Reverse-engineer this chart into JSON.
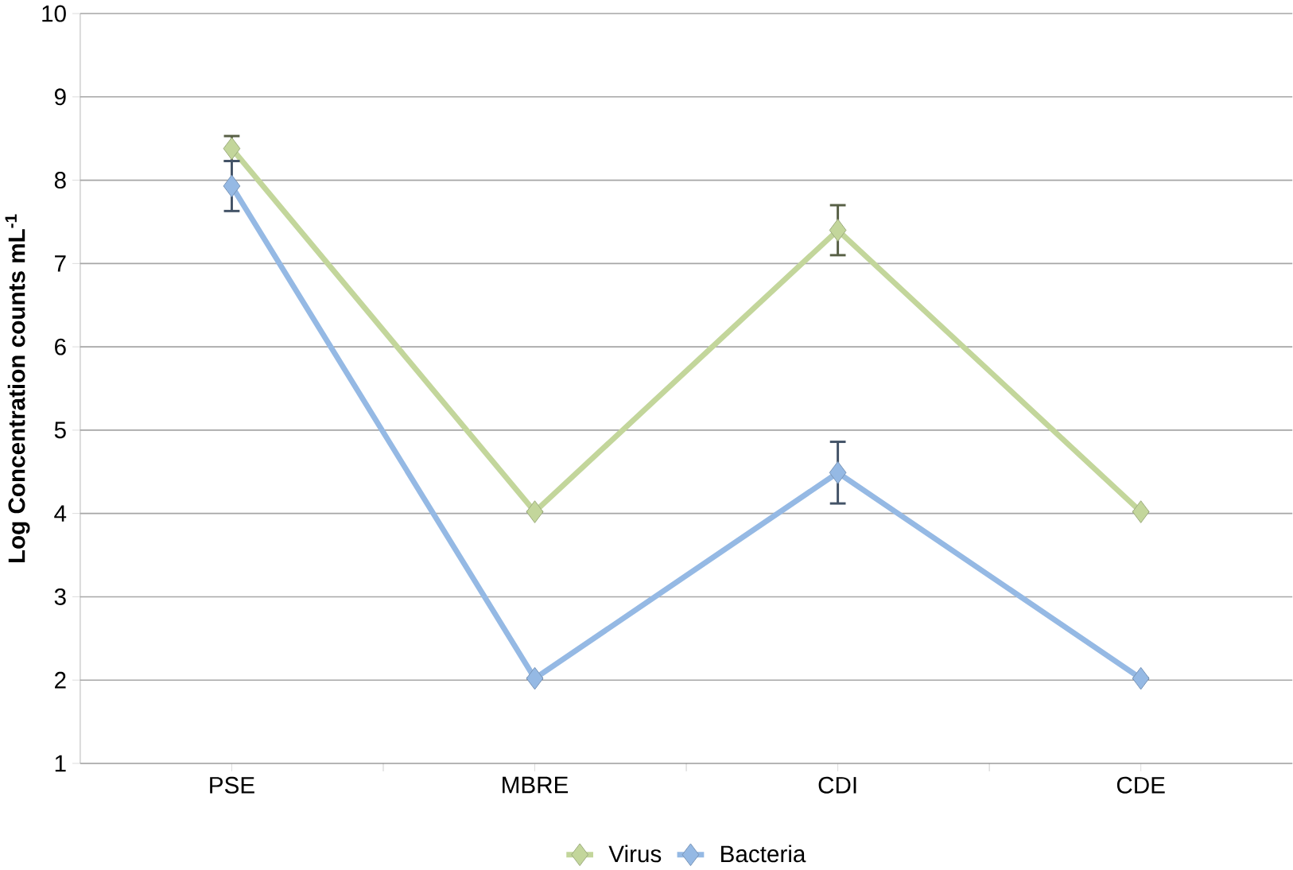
{
  "chart_data": {
    "type": "line",
    "ylabel": "Log Concentration counts mL$^{-1}$",
    "categories": [
      "PSE",
      "MBRE",
      "CDI",
      "CDE"
    ],
    "series": [
      {
        "name": "Virus",
        "color": "#c3d69b",
        "values": [
          8.38,
          4.02,
          7.4,
          4.02
        ],
        "errors": [
          0.15,
          null,
          0.3,
          null
        ]
      },
      {
        "name": "Bacteria",
        "color": "#95b9e4",
        "values": [
          7.93,
          2.02,
          4.49,
          2.02
        ],
        "errors": [
          0.3,
          null,
          0.37,
          null
        ]
      }
    ],
    "ylim": [
      1,
      10
    ],
    "yticks": [
      1,
      2,
      3,
      4,
      5,
      6,
      7,
      8,
      9,
      10
    ],
    "grid": "y",
    "legend": "bottom",
    "marker": "diamond",
    "line_style": "solid"
  }
}
